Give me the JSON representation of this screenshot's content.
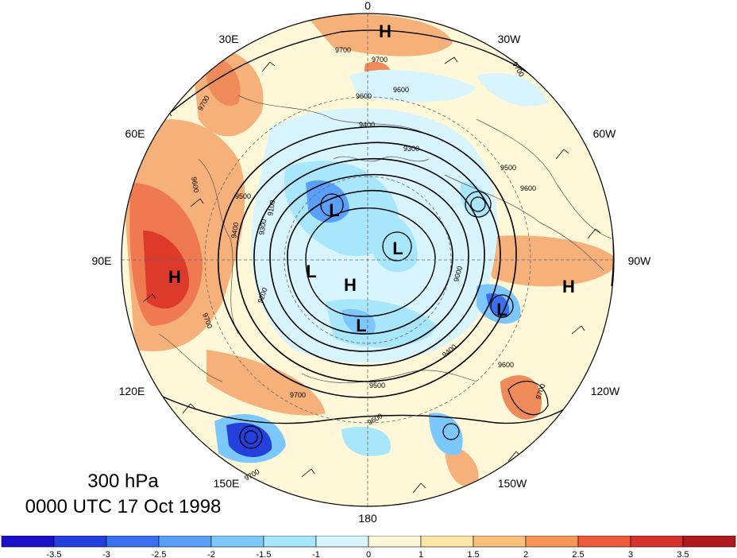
{
  "title": {
    "level": "300 hPa",
    "time": "0000 UTC 17 Oct 1998"
  },
  "longitude_labels": [
    "0",
    "30W",
    "60W",
    "90W",
    "120W",
    "150W",
    "180",
    "150E",
    "120E",
    "90E",
    "60E",
    "30E"
  ],
  "contour_labels": [
    "9700",
    "9700",
    "9700",
    "9600",
    "9600",
    "9400",
    "9300",
    "9500",
    "9600",
    "9500",
    "9400",
    "9300",
    "9100",
    "9200",
    "9000",
    "9600",
    "9500",
    "9400",
    "9700",
    "9600",
    "9700",
    "9600",
    "9700",
    "9700",
    "9700"
  ],
  "pressure_centers": [
    {
      "label": "H",
      "note": "north"
    },
    {
      "label": "H",
      "note": "90E"
    },
    {
      "label": "H",
      "note": "pole"
    },
    {
      "label": "H",
      "note": "90W"
    },
    {
      "label": "L",
      "note": "a"
    },
    {
      "label": "L",
      "note": "b"
    },
    {
      "label": "L",
      "note": "c"
    },
    {
      "label": "L",
      "note": "d"
    },
    {
      "label": "L",
      "note": "e"
    }
  ],
  "colorbar": {
    "tick_labels": [
      "-3.5",
      "-3",
      "-2.5",
      "-2",
      "-1.5",
      "-1",
      "0",
      "1",
      "1.5",
      "2",
      "2.5",
      "3",
      "3.5"
    ],
    "colors": [
      "#1a10c8",
      "#2440dc",
      "#3a6ff0",
      "#5aa0fa",
      "#7dc8fb",
      "#a8e6fc",
      "#d8f4fd",
      "#fff8d8",
      "#fde6a6",
      "#fbc07a",
      "#f79456",
      "#ee5a3a",
      "#d8302a",
      "#b01a1e"
    ]
  },
  "map_colors": {
    "ocean_fill": "#fff8d8",
    "contour": "#000000",
    "coast": "#555555"
  }
}
